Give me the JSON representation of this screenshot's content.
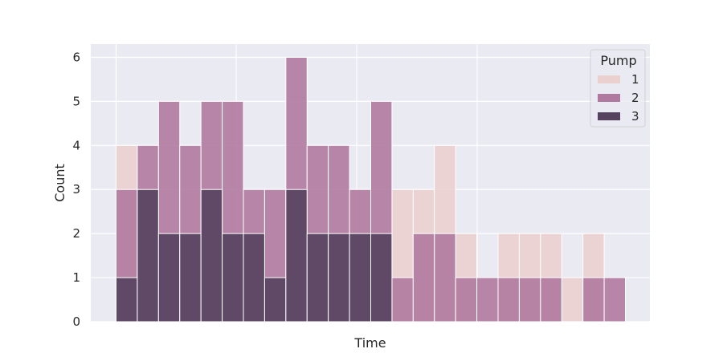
{
  "chart_data": {
    "type": "bar",
    "stacked": false,
    "overlay": true,
    "xlabel": "Time",
    "ylabel": "Count",
    "ylim": [
      0,
      6.3
    ],
    "yticks": [
      0,
      1,
      2,
      3,
      4,
      5,
      6
    ],
    "grid": true,
    "bins": 24,
    "legend": {
      "title": "Pump",
      "placement": "top-right",
      "entries": [
        "1",
        "2",
        "3"
      ]
    },
    "series": [
      {
        "name": "1",
        "color": "#ebd0d0",
        "values": [
          4,
          0,
          0,
          0,
          0,
          0,
          0,
          0,
          0,
          0,
          0,
          0,
          0,
          3,
          3,
          4,
          2,
          0,
          2,
          2,
          2,
          1,
          2,
          0
        ]
      },
      {
        "name": "2",
        "color": "#b07aa0",
        "values": [
          3,
          4,
          5,
          4,
          5,
          5,
          3,
          3,
          6,
          4,
          4,
          3,
          5,
          1,
          2,
          2,
          1,
          1,
          1,
          1,
          1,
          0,
          1,
          1
        ]
      },
      {
        "name": "3",
        "color": "#55425f",
        "values": [
          1,
          3,
          2,
          2,
          3,
          2,
          2,
          1,
          3,
          2,
          2,
          2,
          2,
          0,
          0,
          0,
          0,
          0,
          0,
          0,
          0,
          0,
          0,
          0
        ]
      }
    ],
    "colors": {
      "background": "#eaeaf2",
      "grid": "#ffffff",
      "text": "#262626"
    }
  }
}
